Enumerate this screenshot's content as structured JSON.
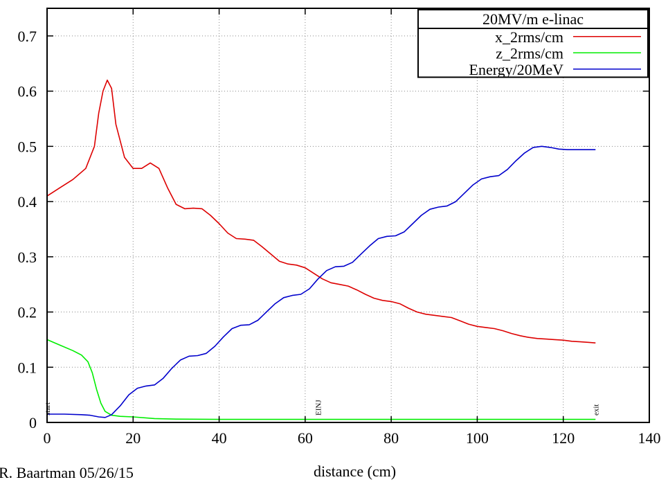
{
  "chart_data": {
    "type": "line",
    "title": "",
    "xlabel": "distance (cm)",
    "ylabel": "",
    "xlim": [
      0,
      140
    ],
    "ylim": [
      0,
      0.75
    ],
    "x_ticks": [
      0,
      20,
      40,
      60,
      80,
      100,
      120,
      140
    ],
    "y_ticks": [
      0,
      0.1,
      0.2,
      0.3,
      0.4,
      0.5,
      0.6,
      0.7
    ],
    "grid": true,
    "legend_position": "top-right",
    "legend_title": "20MV/m e-linac",
    "series": [
      {
        "name": "x_2rms/cm",
        "color": "#dd0000",
        "points": [
          [
            0,
            0.41
          ],
          [
            3,
            0.425
          ],
          [
            6,
            0.44
          ],
          [
            9,
            0.46
          ],
          [
            11,
            0.5
          ],
          [
            12,
            0.56
          ],
          [
            13,
            0.6
          ],
          [
            14,
            0.62
          ],
          [
            15,
            0.605
          ],
          [
            16,
            0.54
          ],
          [
            18,
            0.48
          ],
          [
            20,
            0.46
          ],
          [
            22,
            0.46
          ],
          [
            24,
            0.47
          ],
          [
            26,
            0.46
          ],
          [
            28,
            0.425
          ],
          [
            30,
            0.395
          ],
          [
            32,
            0.387
          ],
          [
            34,
            0.388
          ],
          [
            36,
            0.387
          ],
          [
            38,
            0.375
          ],
          [
            40,
            0.36
          ],
          [
            42,
            0.343
          ],
          [
            44,
            0.333
          ],
          [
            46,
            0.332
          ],
          [
            48,
            0.33
          ],
          [
            50,
            0.318
          ],
          [
            52,
            0.305
          ],
          [
            54,
            0.292
          ],
          [
            56,
            0.287
          ],
          [
            58,
            0.285
          ],
          [
            60,
            0.28
          ],
          [
            62,
            0.27
          ],
          [
            64,
            0.26
          ],
          [
            66,
            0.253
          ],
          [
            68,
            0.25
          ],
          [
            70,
            0.247
          ],
          [
            72,
            0.24
          ],
          [
            74,
            0.232
          ],
          [
            76,
            0.225
          ],
          [
            78,
            0.221
          ],
          [
            80,
            0.219
          ],
          [
            82,
            0.215
          ],
          [
            84,
            0.207
          ],
          [
            86,
            0.2
          ],
          [
            88,
            0.196
          ],
          [
            90,
            0.194
          ],
          [
            92,
            0.192
          ],
          [
            94,
            0.19
          ],
          [
            96,
            0.184
          ],
          [
            98,
            0.178
          ],
          [
            100,
            0.174
          ],
          [
            102,
            0.172
          ],
          [
            104,
            0.17
          ],
          [
            106,
            0.166
          ],
          [
            108,
            0.161
          ],
          [
            110,
            0.157
          ],
          [
            112,
            0.154
          ],
          [
            114,
            0.152
          ],
          [
            116,
            0.151
          ],
          [
            118,
            0.15
          ],
          [
            120,
            0.149
          ],
          [
            122,
            0.147
          ],
          [
            124,
            0.146
          ],
          [
            126,
            0.145
          ],
          [
            127.5,
            0.144
          ]
        ]
      },
      {
        "name": "z_2rms/cm",
        "color": "#00ee00",
        "points": [
          [
            0,
            0.15
          ],
          [
            3,
            0.14
          ],
          [
            6,
            0.13
          ],
          [
            8,
            0.122
          ],
          [
            9.5,
            0.11
          ],
          [
            10.5,
            0.09
          ],
          [
            11.5,
            0.06
          ],
          [
            12.5,
            0.035
          ],
          [
            13.5,
            0.02
          ],
          [
            15,
            0.013
          ],
          [
            17,
            0.011
          ],
          [
            20,
            0.01
          ],
          [
            25,
            0.007
          ],
          [
            30,
            0.006
          ],
          [
            40,
            0.0055
          ],
          [
            60,
            0.0055
          ],
          [
            80,
            0.0055
          ],
          [
            100,
            0.0055
          ],
          [
            127.5,
            0.0055
          ]
        ]
      },
      {
        "name": "Energy/20MeV",
        "color": "#0000cc",
        "points": [
          [
            0,
            0.015
          ],
          [
            4,
            0.015
          ],
          [
            8,
            0.014
          ],
          [
            10,
            0.013
          ],
          [
            12,
            0.01
          ],
          [
            13.5,
            0.009
          ],
          [
            15,
            0.014
          ],
          [
            17,
            0.03
          ],
          [
            19,
            0.05
          ],
          [
            21,
            0.062
          ],
          [
            23,
            0.066
          ],
          [
            25,
            0.068
          ],
          [
            27,
            0.08
          ],
          [
            29,
            0.098
          ],
          [
            31,
            0.113
          ],
          [
            33,
            0.12
          ],
          [
            35,
            0.121
          ],
          [
            37,
            0.125
          ],
          [
            39,
            0.138
          ],
          [
            41,
            0.155
          ],
          [
            43,
            0.17
          ],
          [
            45,
            0.176
          ],
          [
            47,
            0.177
          ],
          [
            49,
            0.185
          ],
          [
            51,
            0.2
          ],
          [
            53,
            0.215
          ],
          [
            55,
            0.226
          ],
          [
            57,
            0.23
          ],
          [
            59,
            0.232
          ],
          [
            61,
            0.242
          ],
          [
            63,
            0.26
          ],
          [
            65,
            0.275
          ],
          [
            67,
            0.282
          ],
          [
            69,
            0.283
          ],
          [
            71,
            0.29
          ],
          [
            73,
            0.305
          ],
          [
            75,
            0.32
          ],
          [
            77,
            0.333
          ],
          [
            79,
            0.337
          ],
          [
            81,
            0.338
          ],
          [
            83,
            0.345
          ],
          [
            85,
            0.36
          ],
          [
            87,
            0.375
          ],
          [
            89,
            0.386
          ],
          [
            91,
            0.39
          ],
          [
            93,
            0.392
          ],
          [
            95,
            0.4
          ],
          [
            97,
            0.415
          ],
          [
            99,
            0.43
          ],
          [
            101,
            0.441
          ],
          [
            103,
            0.445
          ],
          [
            105,
            0.447
          ],
          [
            107,
            0.458
          ],
          [
            109,
            0.474
          ],
          [
            111,
            0.488
          ],
          [
            113,
            0.498
          ],
          [
            115,
            0.5
          ],
          [
            117,
            0.498
          ],
          [
            119,
            0.495
          ],
          [
            121,
            0.494
          ],
          [
            124,
            0.494
          ],
          [
            127.5,
            0.494
          ]
        ]
      }
    ],
    "annotations": [
      {
        "text": "start",
        "x": 0
      },
      {
        "text": "EINJ",
        "x": 63
      },
      {
        "text": "exit",
        "x": 127.5
      }
    ],
    "footer": "R. Baartman 05/26/15"
  }
}
